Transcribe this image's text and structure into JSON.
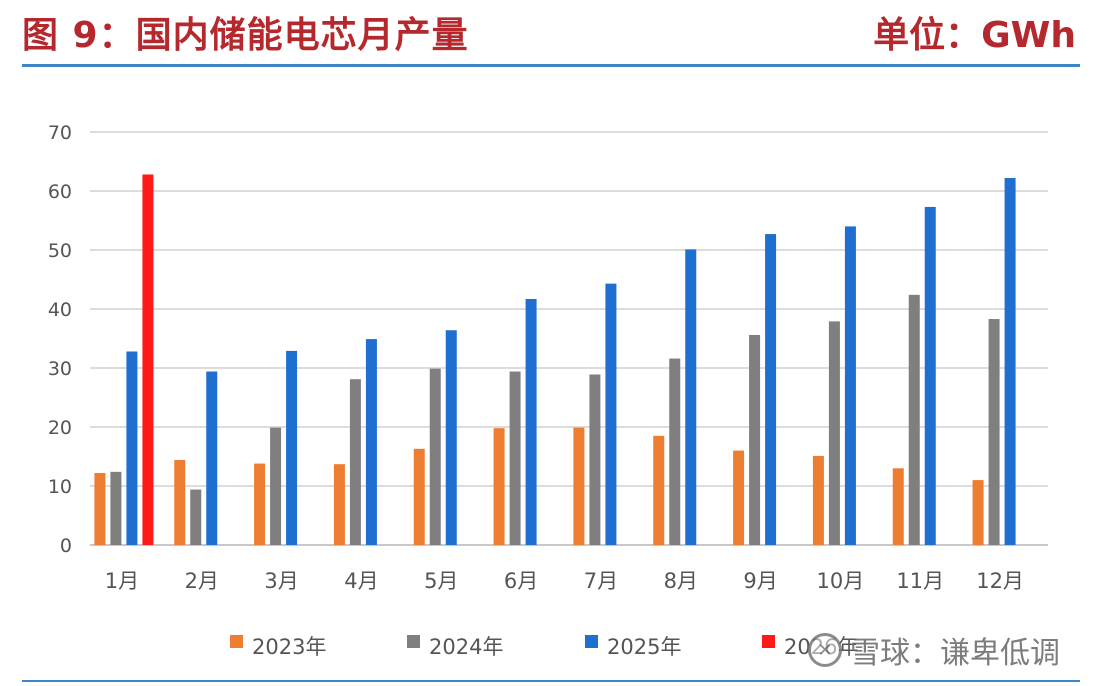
{
  "header": {
    "title": "图 9：国内储能电芯月产量",
    "unit": "单位：GWh"
  },
  "watermark": {
    "text": "雪球：谦卑低调",
    "icon": "xueqiu-logo-icon"
  },
  "chart_data": {
    "type": "bar",
    "categories": [
      "1月",
      "2月",
      "3月",
      "4月",
      "5月",
      "6月",
      "7月",
      "8月",
      "9月",
      "10月",
      "11月",
      "12月"
    ],
    "series": [
      {
        "name": "2023年",
        "color": "#ed7d31",
        "values": [
          12.2,
          14.4,
          13.8,
          13.7,
          16.3,
          19.8,
          19.9,
          18.5,
          16.0,
          15.1,
          13.0,
          11.0
        ]
      },
      {
        "name": "2024年",
        "color": "#7f7f7f",
        "values": [
          12.4,
          9.4,
          19.9,
          28.1,
          29.9,
          29.4,
          28.9,
          31.6,
          35.6,
          37.9,
          42.4,
          38.3
        ]
      },
      {
        "name": "2025年",
        "color": "#1f6fd1",
        "values": [
          32.8,
          29.4,
          32.9,
          34.9,
          36.4,
          41.7,
          44.3,
          50.1,
          52.7,
          54.0,
          57.3,
          62.2
        ]
      },
      {
        "name": "2026年",
        "color": "#ff1a1a",
        "values": [
          62.8,
          null,
          null,
          null,
          null,
          null,
          null,
          null,
          null,
          null,
          null,
          null
        ]
      }
    ],
    "legend_labels": [
      "2023年",
      "2024年",
      "2025年",
      "2026年"
    ],
    "ylim": [
      0,
      70
    ],
    "yticks": [
      0,
      10,
      20,
      30,
      40,
      50,
      60,
      70
    ],
    "grid": true,
    "legend_position": "bottom"
  }
}
